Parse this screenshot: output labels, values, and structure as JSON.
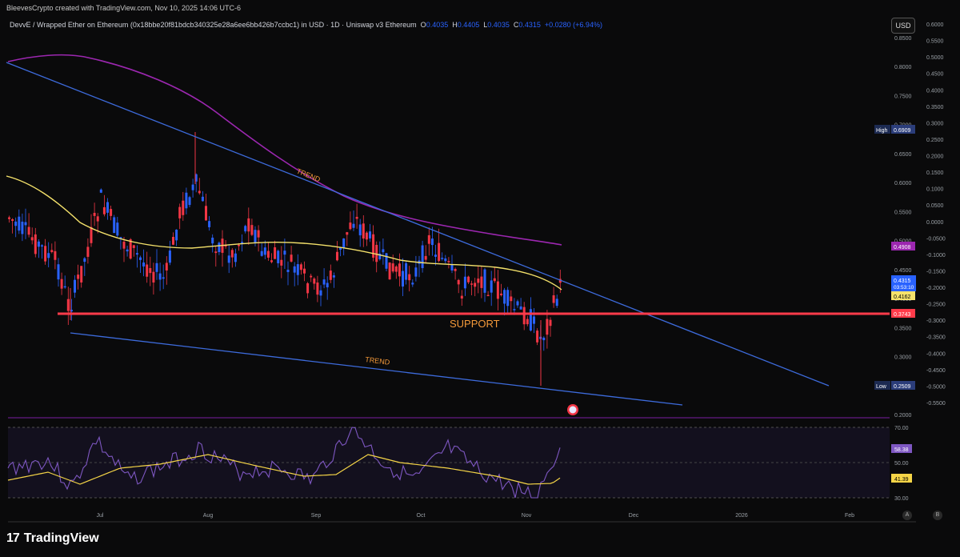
{
  "header": {
    "top_line": "BleevesCrypto created with TradingView.com, Nov 10, 2025 14:06 UTC-6",
    "symbol_line": "DevvE / Wrapped Ether on Ethereum (0x18bbe20f81bdcb340325e28a6ee6bb426b7ccbc1) in USD · 1D · Uniswap v3 Ethereum",
    "o_label": "O",
    "o_value": "0.4035",
    "h_label": "H",
    "h_value": "0.4405",
    "l_label": "L",
    "l_value": "0.4035",
    "c_label": "C",
    "c_value": "0.4315",
    "change": "+0.0280 (+6.94%)",
    "currency_button": "USD"
  },
  "footer": {
    "brand_logo": "17",
    "brand_name": "TradingView"
  },
  "chart_data": [
    {
      "type": "candlestick",
      "x_ticks": [
        "Jul",
        "Aug",
        "Sep",
        "Oct",
        "Nov",
        "Dec",
        "2026",
        "Feb"
      ],
      "y_ticks_left": [
        "0.8000",
        "0.7500",
        "0.7000",
        "0.6500",
        "0.6000",
        "0.5500",
        "0.5000",
        "0.4500",
        "0.4000",
        "0.3500",
        "0.3000",
        "0.2500",
        "0.2000"
      ],
      "y_ticks_right": [
        "0.6000",
        "0.5500",
        "0.5000",
        "0.4500",
        "0.4000",
        "0.3500",
        "0.3000",
        "0.2500",
        "0.2000",
        "0.1500",
        "0.1000",
        "0.0500",
        "0.0000",
        "-0.0500",
        "-0.1000",
        "-0.1500",
        "-0.2000",
        "-0.2500",
        "-0.3000",
        "-0.3500",
        "-0.4000",
        "-0.4500",
        "-0.5000",
        "-0.5500"
      ],
      "top_tick": "0.8500",
      "badges": {
        "high_label": "High",
        "high_value": "0.6909",
        "ma200_value": "0.4908",
        "last_price": "0.4315",
        "countdown": "03:53:10",
        "ma50_value": "0.4162",
        "support_value": "0.3743",
        "low_label": "Low",
        "low_value": "0.2509"
      },
      "annotations": {
        "trend_upper": "TREND",
        "trend_lower": "TREND",
        "support": "SUPPORT"
      },
      "support_level": 0.3743,
      "colors": {
        "up": "#2962ff",
        "down": "#f23645",
        "ma50": "#f5e26b",
        "ma200": "#9c27b0",
        "trendline": "#3d6bdc",
        "support": "#ff3b4a"
      }
    },
    {
      "type": "line",
      "name_axis_ticks": [
        "70.00",
        "50.00",
        "30.00"
      ],
      "rsi_value": "58.38",
      "rsi_ma_value": "41.39",
      "upper_band": 70,
      "lower_band": 30,
      "colors": {
        "rsi": "#7e57c2",
        "rsi_ma": "#f5d547"
      }
    }
  ],
  "axis_buttons": {
    "auto": "A",
    "bottom": "B"
  }
}
